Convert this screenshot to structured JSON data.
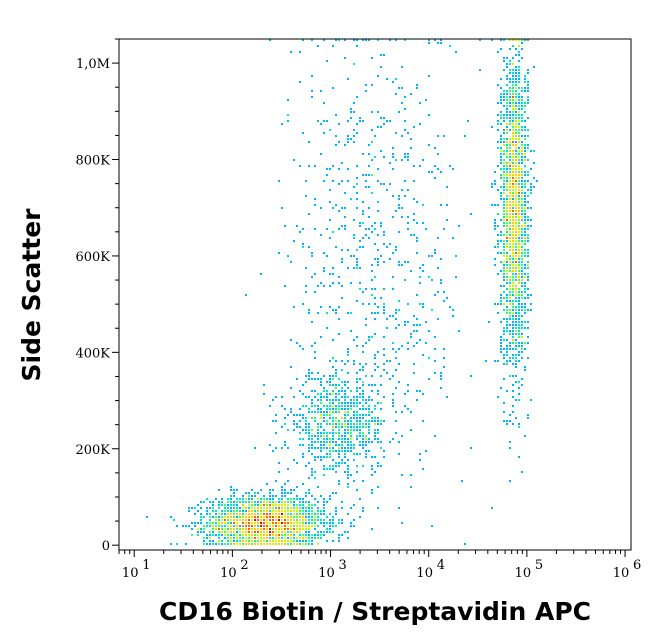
{
  "chart_data": {
    "type": "scatter",
    "subtype": "flow-cytometry-density-dot-plot",
    "title": "",
    "xlabel": "CD16 Biotin / Streptavidin APC",
    "ylabel": "Side Scatter",
    "x_scale": "log",
    "x_range": [
      7,
      1150000
    ],
    "y_range": [
      -10000,
      1050000
    ],
    "x_ticks": [
      {
        "value": 10,
        "base": "10",
        "exp": "1"
      },
      {
        "value": 100,
        "base": "10",
        "exp": "2"
      },
      {
        "value": 1000,
        "base": "10",
        "exp": "3"
      },
      {
        "value": 10000,
        "base": "10",
        "exp": "4"
      },
      {
        "value": 100000,
        "base": "10",
        "exp": "5"
      },
      {
        "value": 1000000,
        "base": "10",
        "exp": "6"
      }
    ],
    "y_ticks": [
      {
        "value": 0,
        "label": "0"
      },
      {
        "value": 200000,
        "label": "200K"
      },
      {
        "value": 400000,
        "label": "400K"
      },
      {
        "value": 600000,
        "label": "600K"
      },
      {
        "value": 800000,
        "label": "800K"
      },
      {
        "value": 1000000,
        "label": "1,0M"
      }
    ],
    "grid": false,
    "legend": "none",
    "populations": [
      {
        "center_x": 220,
        "center_y": 45000,
        "sd_log10_x": 0.3,
        "sd_y": 28000,
        "n": 2600
      },
      {
        "center_x": 1200,
        "center_y": 250000,
        "sd_log10_x": 0.25,
        "sd_y": 50000,
        "n": 800
      },
      {
        "center_x": 75000,
        "center_y": 700000,
        "sd_log10_x": 0.07,
        "sd_y": 160000,
        "n": 2300
      },
      {
        "center_x": 3000,
        "center_y": 600000,
        "sd_log10_x": 0.45,
        "sd_y": 250000,
        "n": 700
      }
    ],
    "density_palette": [
      "#0000c8",
      "#0050ff",
      "#00b4ff",
      "#00e8c8",
      "#40ff60",
      "#c8ff00",
      "#ffd000",
      "#ff6000",
      "#ff0000"
    ]
  }
}
